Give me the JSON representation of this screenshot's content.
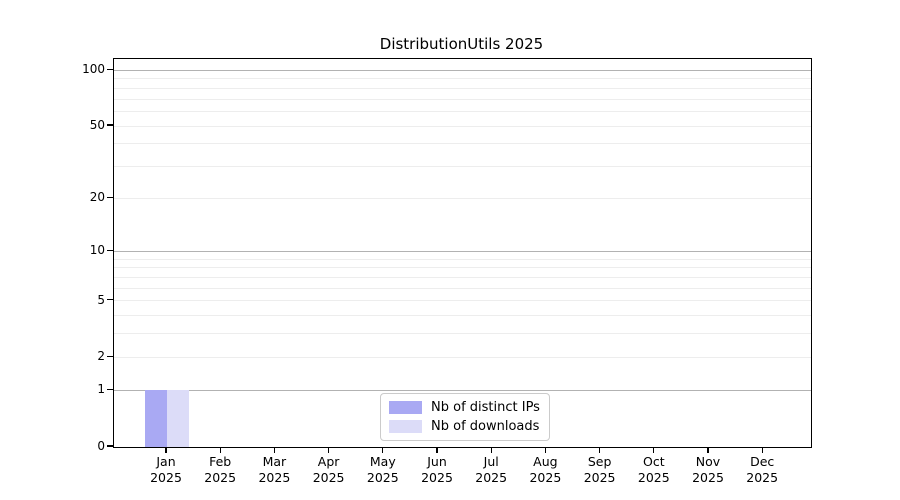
{
  "chart_data": {
    "type": "bar",
    "title": "DistributionUtils 2025",
    "xlabel": "",
    "ylabel": "",
    "categories": [
      "Jan",
      "Feb",
      "Mar",
      "Apr",
      "May",
      "Jun",
      "Jul",
      "Aug",
      "Sep",
      "Oct",
      "Nov",
      "Dec"
    ],
    "category_year": "2025",
    "series": [
      {
        "name": "Nb of distinct IPs",
        "color": "#a9a9f3",
        "values": [
          1,
          0,
          0,
          0,
          0,
          0,
          0,
          0,
          0,
          0,
          0,
          0
        ]
      },
      {
        "name": "Nb of downloads",
        "color": "#dcdcf8",
        "values": [
          1,
          0,
          0,
          0,
          0,
          0,
          0,
          0,
          0,
          0,
          0,
          0
        ]
      }
    ],
    "yscale": "log1p",
    "ylim": [
      0,
      115
    ],
    "yticks": [
      0,
      1,
      2,
      5,
      10,
      20,
      50,
      100
    ],
    "major_gridlines": [
      1,
      10,
      100
    ],
    "minor_gridlines": [
      2,
      3,
      4,
      5,
      6,
      7,
      8,
      9,
      20,
      30,
      40,
      50,
      60,
      70,
      80,
      90
    ],
    "grid": "horizontal-only",
    "legend_position": "lower-center",
    "colors": {
      "major_grid": "#b2b2b2",
      "minor_grid": "#ededed",
      "axis": "#000000",
      "text": "#000000",
      "background": "#ffffff"
    }
  }
}
